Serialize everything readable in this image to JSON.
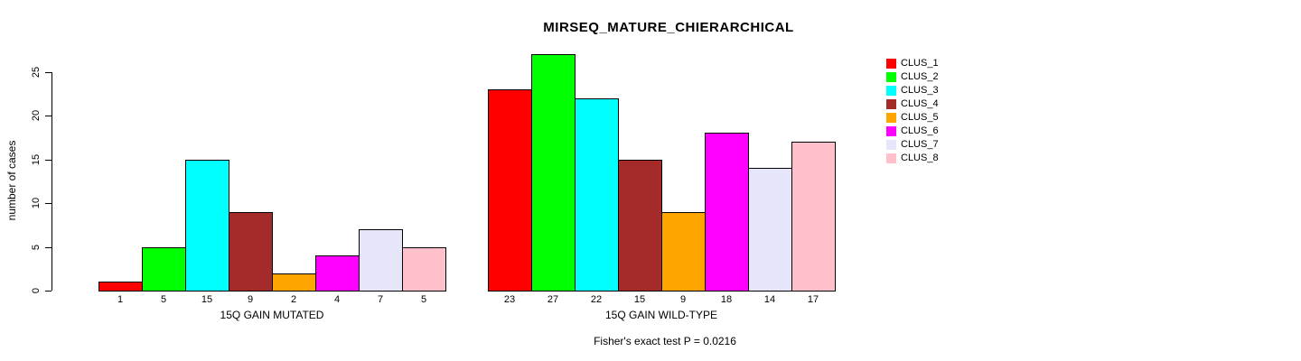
{
  "chart_data": {
    "type": "bar",
    "title": "MIRSEQ_MATURE_CHIERARCHICAL",
    "ylabel": "number of cases",
    "ylim": [
      0,
      27
    ],
    "yticks": [
      0,
      5,
      10,
      15,
      20,
      25
    ],
    "grid": false,
    "bar_border_color": "#000000",
    "legend": {
      "position": "right",
      "entries": [
        {
          "label": "CLUS_1",
          "color": "#FF0000"
        },
        {
          "label": "CLUS_2",
          "color": "#00FF00"
        },
        {
          "label": "CLUS_3",
          "color": "#00FFFF"
        },
        {
          "label": "CLUS_4",
          "color": "#A52A2A"
        },
        {
          "label": "CLUS_5",
          "color": "#FFA500"
        },
        {
          "label": "CLUS_6",
          "color": "#FF00FF"
        },
        {
          "label": "CLUS_7",
          "color": "#E6E6FA"
        },
        {
          "label": "CLUS_8",
          "color": "#FFC0CB"
        }
      ]
    },
    "groups": [
      {
        "label": "15Q GAIN MUTATED",
        "values": [
          1,
          5,
          15,
          9,
          2,
          4,
          7,
          5
        ]
      },
      {
        "label": "15Q GAIN WILD-TYPE",
        "values": [
          23,
          27,
          22,
          15,
          9,
          18,
          14,
          17
        ]
      }
    ],
    "footnote": "Fisher's exact test P = 0.0216"
  }
}
